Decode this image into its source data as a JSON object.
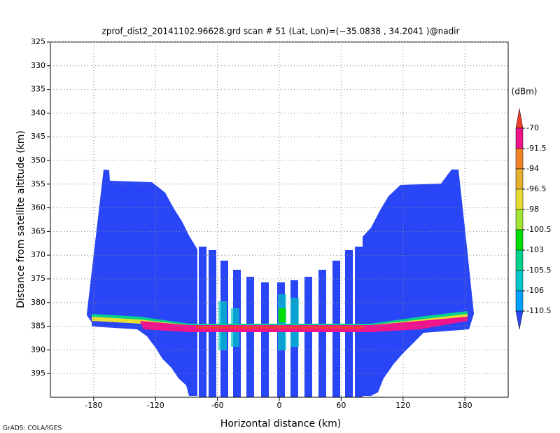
{
  "chart_data": {
    "type": "field",
    "title": "zprof_dist2_20141102.96628.grd  scan # 51  (Lat, Lon)=(−35.0838 , 34.2041 )@nadir",
    "x_label": "Horizontal distance (km)",
    "y_label": "Distance from satellite altitude (km)",
    "xlim": [
      -222,
      222
    ],
    "xticks": [
      -180,
      -120,
      -60,
      0,
      60,
      120,
      180
    ],
    "ylim": [
      325,
      400
    ],
    "yticks": [
      325,
      330,
      335,
      340,
      345,
      350,
      355,
      360,
      365,
      370,
      375,
      380,
      385,
      390,
      395
    ],
    "grid": true,
    "colorbar": {
      "unit": "(dBm)",
      "levels": [
        -70,
        -91.5,
        -94,
        -96.5,
        -98,
        -100.5,
        -103,
        -105.5,
        -106,
        -110.5
      ],
      "colors": [
        "#f03c28",
        "#f0148c",
        "#f08228",
        "#e6af2d",
        "#e6dc32",
        "#a0e632",
        "#00dc00",
        "#00d28c",
        "#00c8c8",
        "#00a0ff",
        "#2846f5"
      ]
    },
    "footer": "GrADS: COLA/IGES"
  }
}
